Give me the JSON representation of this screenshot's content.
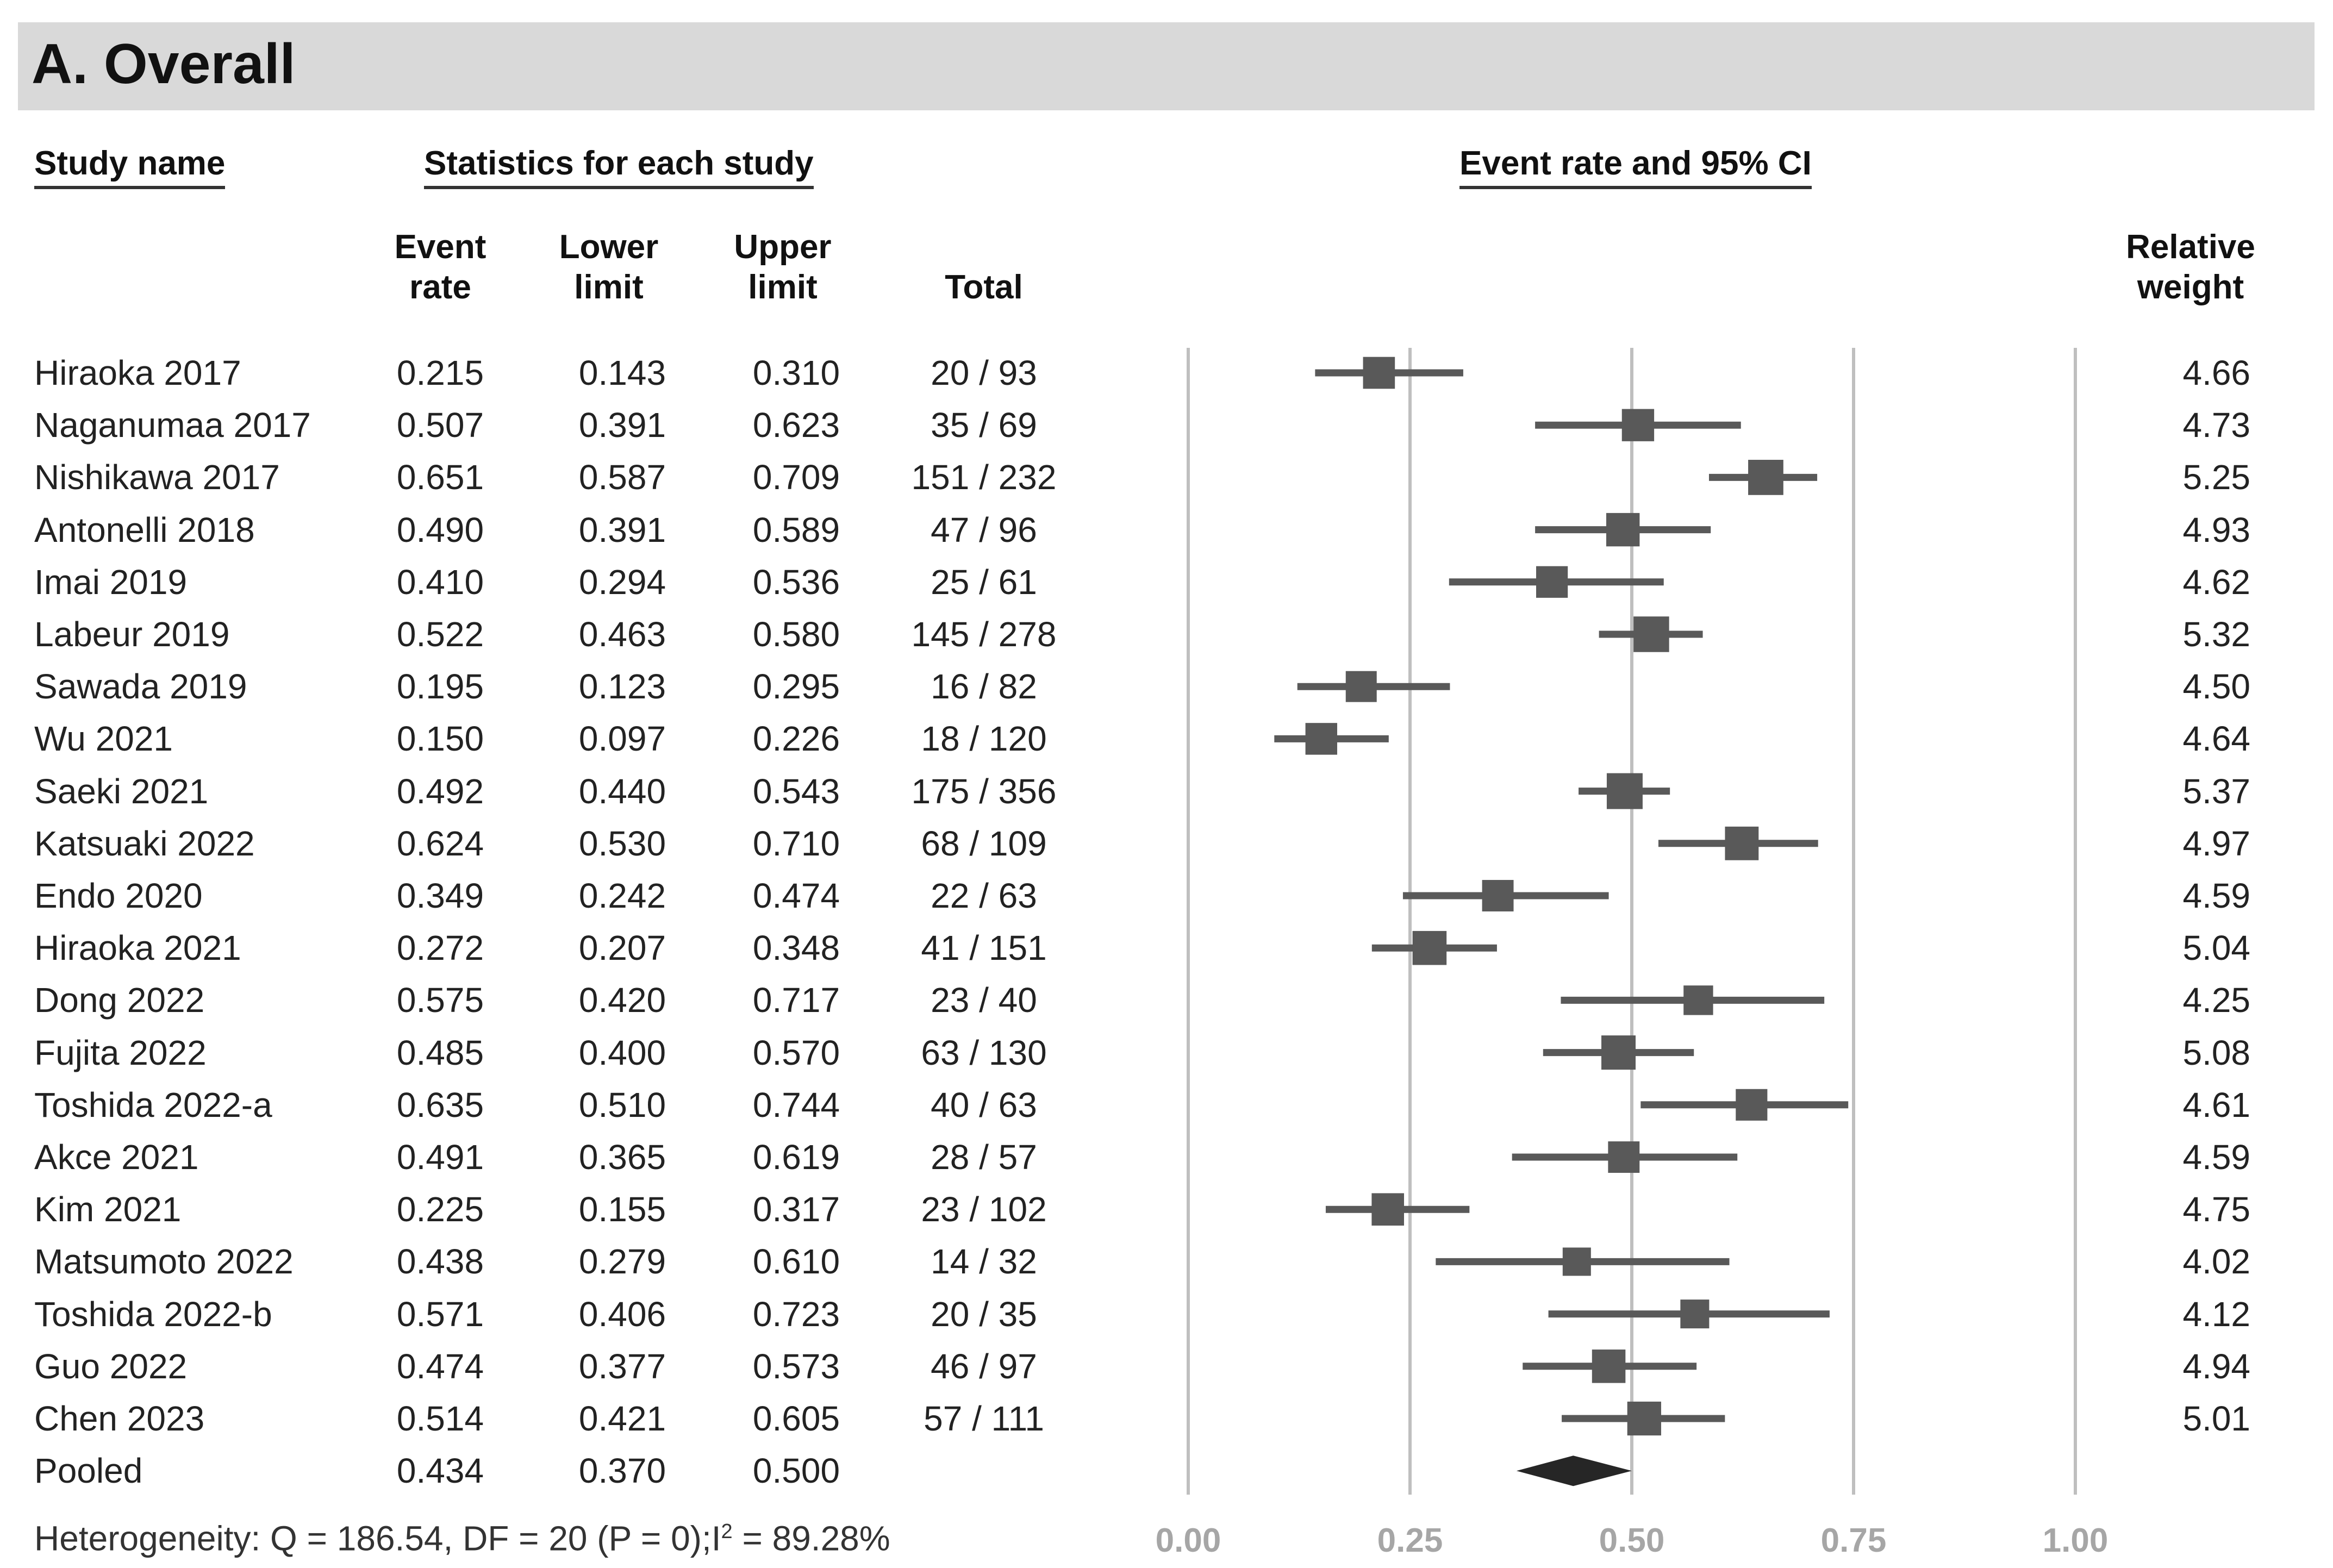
{
  "panel_title": "A. Overall",
  "headers": {
    "study_name": "Study name",
    "statistics": "Statistics for each study",
    "event_rate_ci": "Event rate and 95% CI",
    "event_rate_1": "Event",
    "event_rate_2": "rate",
    "lower_1": "Lower",
    "lower_2": "limit",
    "upper_1": "Upper",
    "upper_2": "limit",
    "total": "Total",
    "weight_1": "Relative",
    "weight_2": "weight"
  },
  "colors": {
    "marker": "#595959",
    "gridline": "#bfbfbf",
    "axis_label": "#a6a6a6",
    "diamond": "#262626"
  },
  "chart_data": {
    "type": "forest",
    "title": "Event rate and 95% CI",
    "xlim": [
      0,
      1
    ],
    "x_ticks": [
      "0.00",
      "0.25",
      "0.50",
      "0.75",
      "1.00"
    ],
    "x_tick_values": [
      0,
      0.25,
      0.5,
      0.75,
      1.0
    ],
    "studies": [
      {
        "name": "Hiraoka 2017",
        "rate": "0.215",
        "lower": "0.143",
        "upper": "0.310",
        "total": "20 / 93",
        "weight": "4.66"
      },
      {
        "name": "Naganumaa 2017",
        "rate": "0.507",
        "lower": "0.391",
        "upper": "0.623",
        "total": "35 / 69",
        "weight": "4.73"
      },
      {
        "name": "Nishikawa 2017",
        "rate": "0.651",
        "lower": "0.587",
        "upper": "0.709",
        "total": "151 / 232",
        "weight": "5.25"
      },
      {
        "name": "Antonelli 2018",
        "rate": "0.490",
        "lower": "0.391",
        "upper": "0.589",
        "total": "47 / 96",
        "weight": "4.93"
      },
      {
        "name": "Imai 2019",
        "rate": "0.410",
        "lower": "0.294",
        "upper": "0.536",
        "total": "25 / 61",
        "weight": "4.62"
      },
      {
        "name": "Labeur 2019",
        "rate": "0.522",
        "lower": "0.463",
        "upper": "0.580",
        "total": "145 / 278",
        "weight": "5.32"
      },
      {
        "name": "Sawada 2019",
        "rate": "0.195",
        "lower": "0.123",
        "upper": "0.295",
        "total": "16 / 82",
        "weight": "4.50"
      },
      {
        "name": "Wu 2021",
        "rate": "0.150",
        "lower": "0.097",
        "upper": "0.226",
        "total": "18 / 120",
        "weight": "4.64"
      },
      {
        "name": "Saeki 2021",
        "rate": "0.492",
        "lower": "0.440",
        "upper": "0.543",
        "total": "175 / 356",
        "weight": "5.37"
      },
      {
        "name": "Katsuaki 2022",
        "rate": "0.624",
        "lower": "0.530",
        "upper": "0.710",
        "total": "68 / 109",
        "weight": "4.97"
      },
      {
        "name": "Endo 2020",
        "rate": "0.349",
        "lower": "0.242",
        "upper": "0.474",
        "total": "22 / 63",
        "weight": "4.59"
      },
      {
        "name": "Hiraoka 2021",
        "rate": "0.272",
        "lower": "0.207",
        "upper": "0.348",
        "total": "41 / 151",
        "weight": "5.04"
      },
      {
        "name": "Dong 2022",
        "rate": "0.575",
        "lower": "0.420",
        "upper": "0.717",
        "total": "23 / 40",
        "weight": "4.25"
      },
      {
        "name": "Fujita 2022",
        "rate": "0.485",
        "lower": "0.400",
        "upper": "0.570",
        "total": "63 / 130",
        "weight": "5.08"
      },
      {
        "name": "Toshida 2022-a",
        "rate": "0.635",
        "lower": "0.510",
        "upper": "0.744",
        "total": "40 / 63",
        "weight": "4.61"
      },
      {
        "name": "Akce 2021",
        "rate": "0.491",
        "lower": "0.365",
        "upper": "0.619",
        "total": "28 / 57",
        "weight": "4.59"
      },
      {
        "name": "Kim 2021",
        "rate": "0.225",
        "lower": "0.155",
        "upper": "0.317",
        "total": "23 / 102",
        "weight": "4.75"
      },
      {
        "name": "Matsumoto 2022",
        "rate": "0.438",
        "lower": "0.279",
        "upper": "0.610",
        "total": "14 / 32",
        "weight": "4.02"
      },
      {
        "name": "Toshida 2022-b",
        "rate": "0.571",
        "lower": "0.406",
        "upper": "0.723",
        "total": "20 / 35",
        "weight": "4.12"
      },
      {
        "name": "Guo 2022",
        "rate": "0.474",
        "lower": "0.377",
        "upper": "0.573",
        "total": "46 / 97",
        "weight": "4.94"
      },
      {
        "name": "Chen 2023",
        "rate": "0.514",
        "lower": "0.421",
        "upper": "0.605",
        "total": "57 / 111",
        "weight": "5.01"
      }
    ],
    "pooled": {
      "name": "Pooled",
      "rate": "0.434",
      "lower": "0.370",
      "upper": "0.500"
    }
  },
  "heterogeneity": {
    "prefix": "Heterogeneity: Q = 186.54, DF = 20 (P = 0);I",
    "sup": "2",
    "suffix": " = 89.28%"
  }
}
